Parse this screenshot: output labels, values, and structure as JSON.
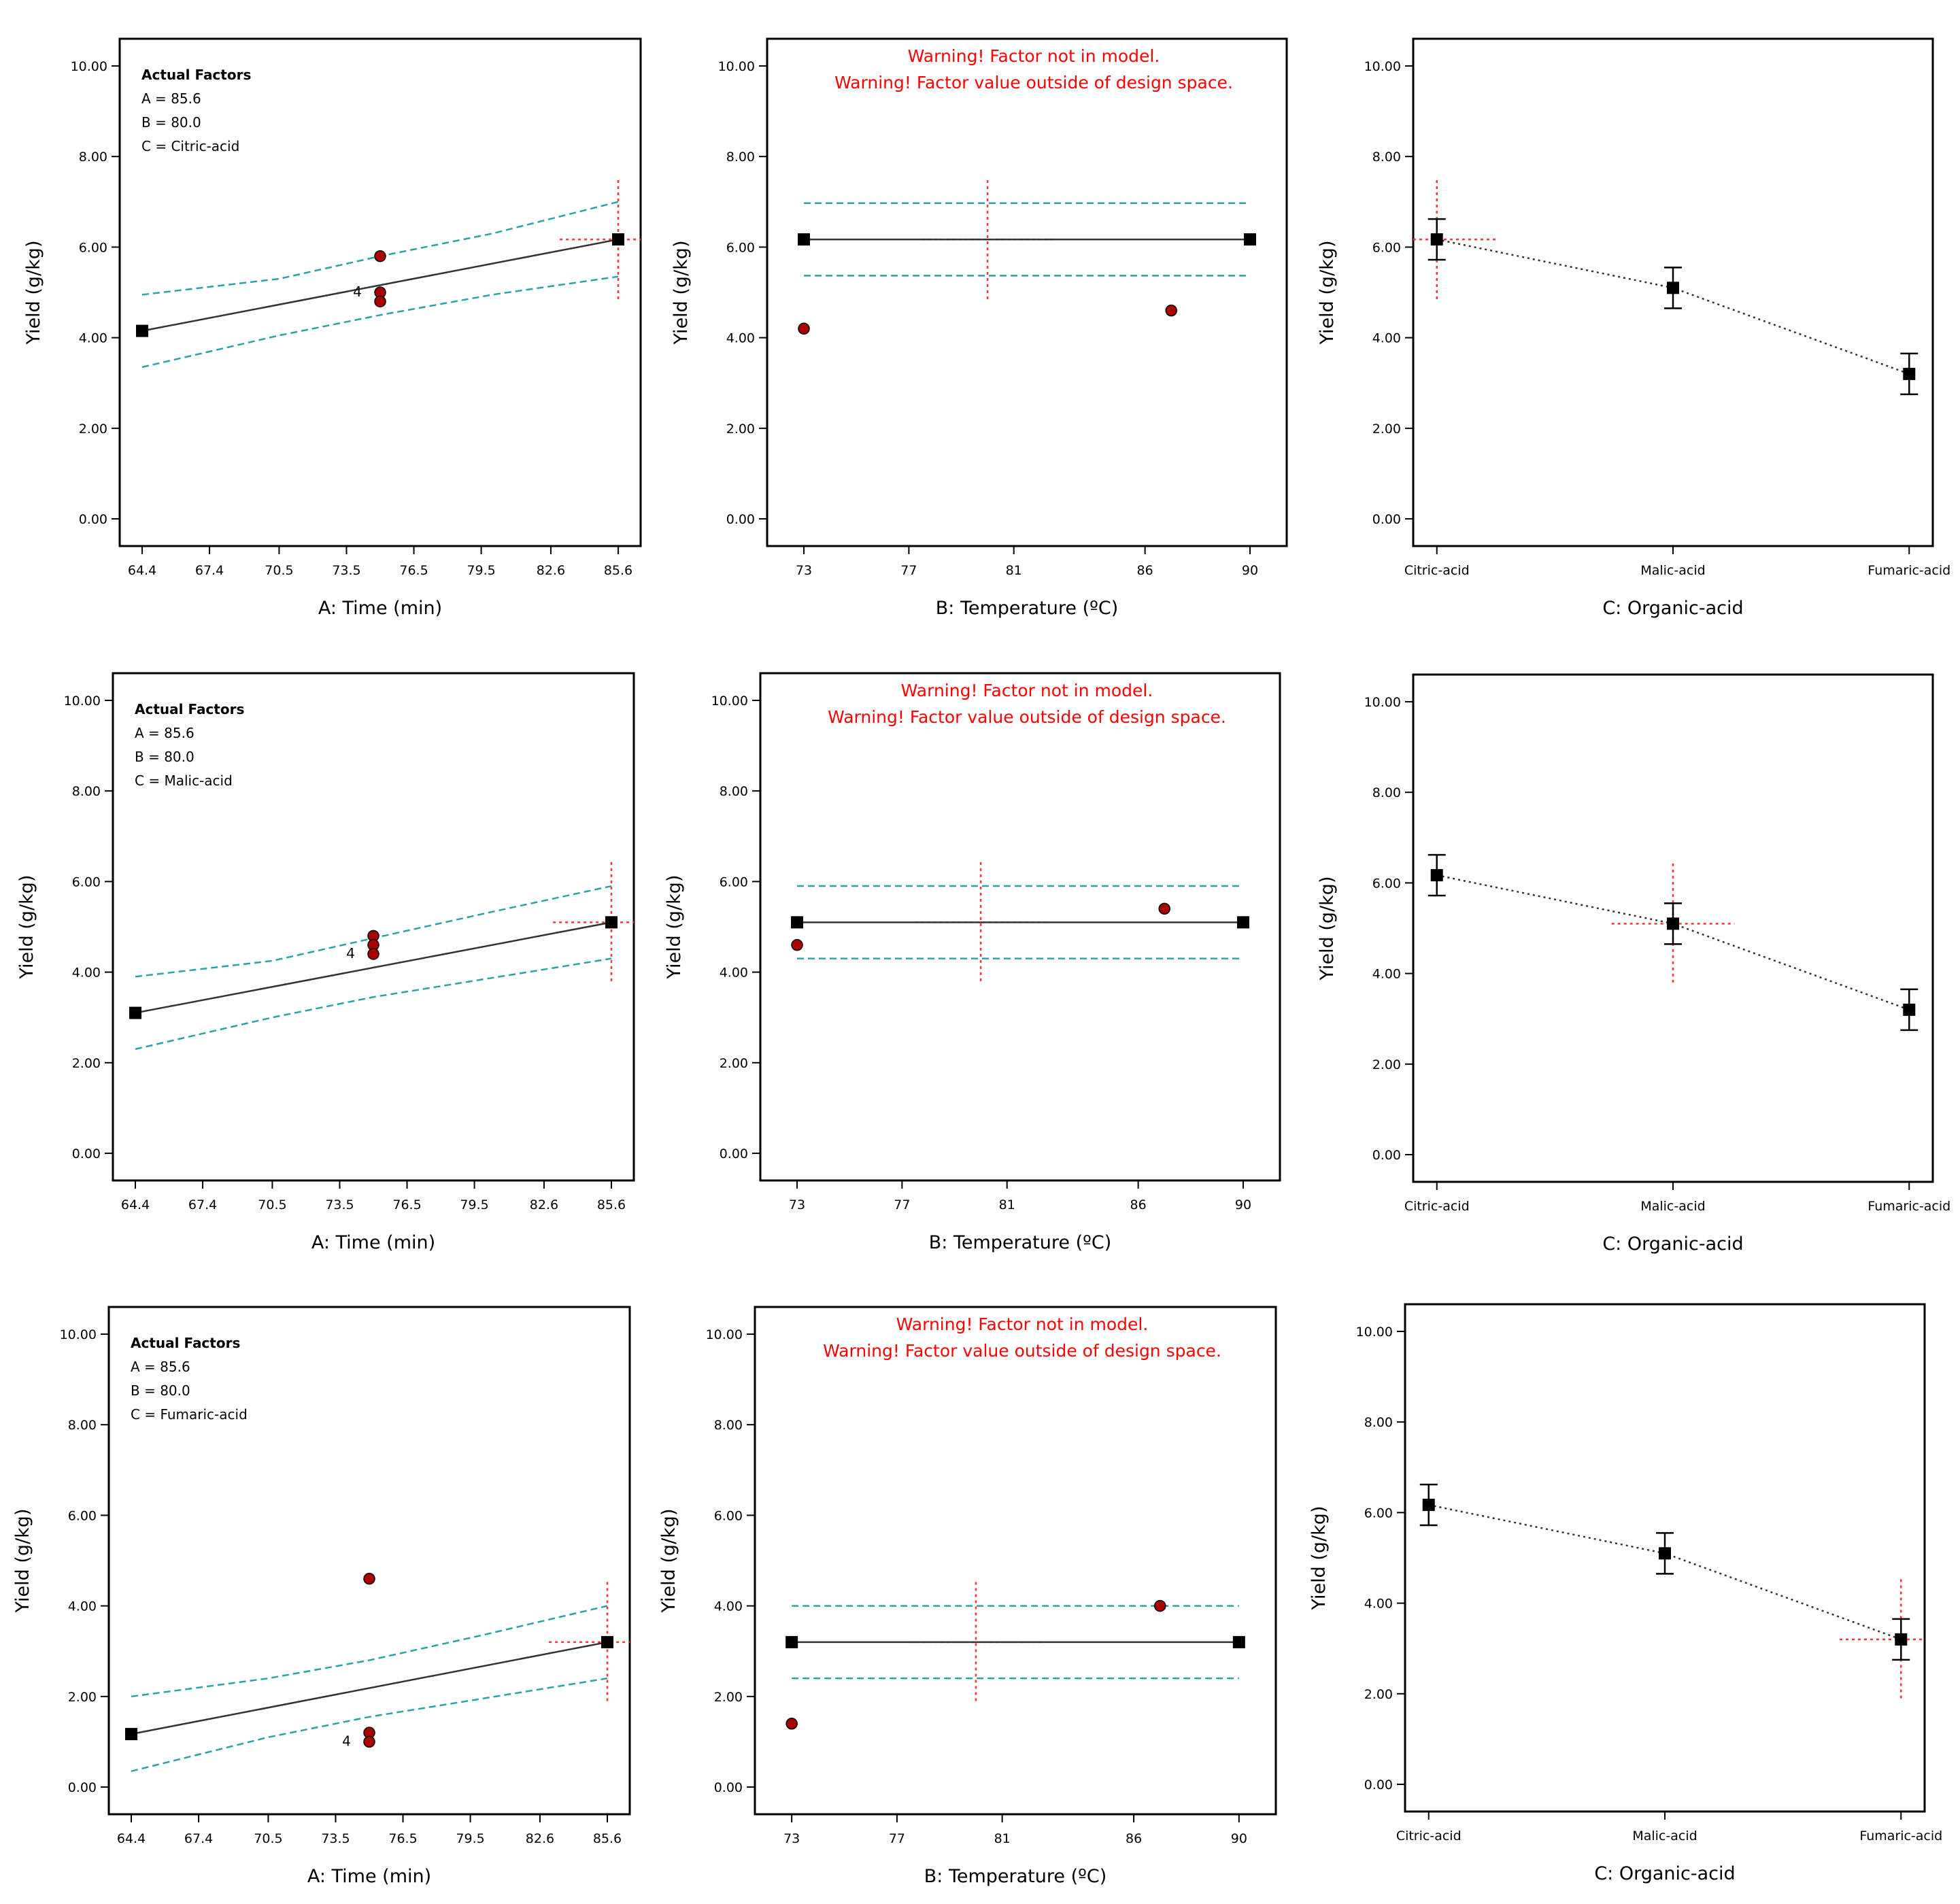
{
  "colors": {
    "fit_line": "#333333",
    "ci_band": "#2aa3a6",
    "marker": "#000000",
    "point_fill": "#aa0000",
    "crosshair": "#ff3333",
    "warning": "#ff0000"
  },
  "chart_data": [
    {
      "type": "line",
      "row": 1,
      "factor": "time",
      "xlabel": "A: Time (min)",
      "ylabel": "Yield (g/kg)",
      "xlim": [
        63.4,
        86.6
      ],
      "ylim": [
        -0.6,
        10.6
      ],
      "x_ticks": [
        64.4,
        67.4,
        70.5,
        73.5,
        76.5,
        79.5,
        82.6,
        85.6
      ],
      "y_ticks": [
        "0.00",
        "2.00",
        "4.00",
        "6.00",
        "8.00",
        "10.00"
      ],
      "fit": {
        "x": [
          64.4,
          85.6
        ],
        "y": [
          4.15,
          6.17
        ]
      },
      "ci_upper": {
        "x": [
          64.4,
          70.5,
          75.0,
          80.0,
          85.6
        ],
        "y": [
          4.95,
          5.3,
          5.8,
          6.3,
          7.0
        ]
      },
      "ci_lower": {
        "x": [
          64.4,
          70.5,
          75.0,
          80.0,
          85.6
        ],
        "y": [
          3.35,
          4.05,
          4.5,
          4.95,
          5.35
        ]
      },
      "design_points": {
        "x": [
          75.0,
          75.0,
          75.0
        ],
        "y": [
          5.8,
          5.0,
          4.8
        ]
      },
      "replicate_label": {
        "text": "4",
        "x": 74.3,
        "y": 5.0
      },
      "crosshair": {
        "x": 85.6,
        "y": 6.17,
        "y_low": 4.85,
        "y_high": 7.55,
        "x_low": 83.0,
        "x_high": 86.6
      },
      "legend": {
        "title": "Actual Factors",
        "lines": [
          "A = 85.6",
          "B = 80.0",
          "C = Citric-acid"
        ]
      }
    },
    {
      "type": "line",
      "row": 1,
      "factor": "temperature",
      "xlabel": "B: Temperature (ºC)",
      "ylabel": "Yield (g/kg)",
      "xlim": [
        71.6,
        91.4
      ],
      "ylim": [
        -0.6,
        10.6
      ],
      "x_ticks": [
        73,
        77,
        81,
        86,
        90
      ],
      "y_ticks": [
        "0.00",
        "2.00",
        "4.00",
        "6.00",
        "8.00",
        "10.00"
      ],
      "fit": {
        "x": [
          73,
          90
        ],
        "y": [
          6.17,
          6.17
        ]
      },
      "ci_upper": {
        "x": [
          73,
          90
        ],
        "y": [
          6.97,
          6.97
        ]
      },
      "ci_lower": {
        "x": [
          73,
          90
        ],
        "y": [
          5.37,
          5.37
        ]
      },
      "design_points": {
        "x": [
          73,
          87
        ],
        "y": [
          4.2,
          4.6
        ]
      },
      "crosshair": {
        "x": 80,
        "y": 6.17,
        "y_low": 4.85,
        "y_high": 7.55,
        "x_low": 77.5,
        "x_high": 82.5
      },
      "warnings": [
        "Warning! Factor not in model.",
        "Warning! Factor value outside of design space."
      ]
    },
    {
      "type": "line",
      "row": 1,
      "factor": "acid",
      "xlabel": "C: Organic-acid",
      "ylabel": "Yield (g/kg)",
      "xlim": [
        -0.1,
        2.1
      ],
      "ylim": [
        -0.6,
        10.6
      ],
      "categories": [
        "Citric-acid",
        "Malic-acid",
        "Fumaric-acid"
      ],
      "y_ticks": [
        "0.00",
        "2.00",
        "4.00",
        "6.00",
        "8.00",
        "10.00"
      ],
      "means": [
        6.17,
        5.1,
        3.2
      ],
      "err_low": [
        5.72,
        4.65,
        2.75
      ],
      "err_high": [
        6.62,
        5.55,
        3.65
      ],
      "crosshair": {
        "x": 0,
        "y": 6.17,
        "y_low": 4.85,
        "y_high": 7.55,
        "x_low": -0.1,
        "x_high": 0.26
      }
    },
    {
      "type": "line",
      "row": 2,
      "factor": "time",
      "xlabel": "A: Time (min)",
      "ylabel": "Yield (g/kg)",
      "xlim": [
        63.4,
        86.6
      ],
      "ylim": [
        -0.6,
        10.6
      ],
      "x_ticks": [
        64.4,
        67.4,
        70.5,
        73.5,
        76.5,
        79.5,
        82.6,
        85.6
      ],
      "y_ticks": [
        "0.00",
        "2.00",
        "4.00",
        "6.00",
        "8.00",
        "10.00"
      ],
      "fit": {
        "x": [
          64.4,
          85.6
        ],
        "y": [
          3.1,
          5.1
        ]
      },
      "ci_upper": {
        "x": [
          64.4,
          70.5,
          75.0,
          80.0,
          85.6
        ],
        "y": [
          3.9,
          4.25,
          4.75,
          5.3,
          5.9
        ]
      },
      "ci_lower": {
        "x": [
          64.4,
          70.5,
          75.0,
          80.0,
          85.6
        ],
        "y": [
          2.3,
          3.0,
          3.45,
          3.85,
          4.3
        ]
      },
      "design_points": {
        "x": [
          75.0,
          75.0,
          75.0
        ],
        "y": [
          4.8,
          4.6,
          4.4
        ]
      },
      "replicate_label": {
        "text": "4",
        "x": 74.3,
        "y": 4.4
      },
      "crosshair": {
        "x": 85.6,
        "y": 5.1,
        "y_low": 3.8,
        "y_high": 6.5,
        "x_low": 83.0,
        "x_high": 86.6
      },
      "legend": {
        "title": "Actual Factors",
        "lines": [
          "A = 85.6",
          "B = 80.0",
          "C = Malic-acid"
        ]
      }
    },
    {
      "type": "line",
      "row": 2,
      "factor": "temperature",
      "xlabel": "B: Temperature (ºC)",
      "ylabel": "Yield (g/kg)",
      "xlim": [
        71.6,
        91.4
      ],
      "ylim": [
        -0.6,
        10.6
      ],
      "x_ticks": [
        73,
        77,
        81,
        86,
        90
      ],
      "y_ticks": [
        "0.00",
        "2.00",
        "4.00",
        "6.00",
        "8.00",
        "10.00"
      ],
      "fit": {
        "x": [
          73,
          90
        ],
        "y": [
          5.1,
          5.1
        ]
      },
      "ci_upper": {
        "x": [
          73,
          90
        ],
        "y": [
          5.9,
          5.9
        ]
      },
      "ci_lower": {
        "x": [
          73,
          90
        ],
        "y": [
          4.3,
          4.3
        ]
      },
      "design_points": {
        "x": [
          73,
          87
        ],
        "y": [
          4.6,
          5.4
        ]
      },
      "crosshair": {
        "x": 80,
        "y": 5.1,
        "y_low": 3.8,
        "y_high": 6.5,
        "x_low": 77.5,
        "x_high": 82.5
      },
      "warnings": [
        "Warning! Factor not in model.",
        "Warning! Factor value outside of design space."
      ]
    },
    {
      "type": "line",
      "row": 2,
      "factor": "acid",
      "xlabel": "C: Organic-acid",
      "ylabel": "Yield (g/kg)",
      "xlim": [
        -0.1,
        2.1
      ],
      "ylim": [
        -0.6,
        10.6
      ],
      "categories": [
        "Citric-acid",
        "Malic-acid",
        "Fumaric-acid"
      ],
      "y_ticks": [
        "0.00",
        "2.00",
        "4.00",
        "6.00",
        "8.00",
        "10.00"
      ],
      "means": [
        6.17,
        5.1,
        3.2
      ],
      "err_low": [
        5.72,
        4.65,
        2.75
      ],
      "err_high": [
        6.62,
        5.55,
        3.65
      ],
      "crosshair": {
        "x": 1,
        "y": 5.1,
        "y_low": 3.8,
        "y_high": 6.5,
        "x_low": 0.74,
        "x_high": 1.26
      }
    },
    {
      "type": "line",
      "row": 3,
      "factor": "time",
      "xlabel": "A: Time (min)",
      "ylabel": "Yield (g/kg)",
      "xlim": [
        63.4,
        86.6
      ],
      "ylim": [
        -0.6,
        10.6
      ],
      "x_ticks": [
        64.4,
        67.4,
        70.5,
        73.5,
        76.5,
        79.5,
        82.6,
        85.6
      ],
      "y_ticks": [
        "0.00",
        "2.00",
        "4.00",
        "6.00",
        "8.00",
        "10.00"
      ],
      "fit": {
        "x": [
          64.4,
          85.6
        ],
        "y": [
          1.17,
          3.2
        ]
      },
      "ci_upper": {
        "x": [
          64.4,
          70.5,
          75.0,
          80.0,
          85.6
        ],
        "y": [
          2.0,
          2.4,
          2.8,
          3.35,
          4.0
        ]
      },
      "ci_lower": {
        "x": [
          64.4,
          70.5,
          75.0,
          80.0,
          85.6
        ],
        "y": [
          0.35,
          1.1,
          1.55,
          1.95,
          2.4
        ]
      },
      "design_points": {
        "x": [
          75.0,
          75.0,
          75.0
        ],
        "y": [
          4.6,
          1.2,
          1.0
        ]
      },
      "replicate_label": {
        "text": "4",
        "x": 74.3,
        "y": 1.0
      },
      "crosshair": {
        "x": 85.6,
        "y": 3.2,
        "y_low": 1.9,
        "y_high": 4.6,
        "x_low": 83.0,
        "x_high": 86.6
      },
      "legend": {
        "title": "Actual Factors",
        "lines": [
          "A = 85.6",
          "B = 80.0",
          "C = Fumaric-acid"
        ]
      }
    },
    {
      "type": "line",
      "row": 3,
      "factor": "temperature",
      "xlabel": "B: Temperature (ºC)",
      "ylabel": "Yield (g/kg)",
      "xlim": [
        71.6,
        91.4
      ],
      "ylim": [
        -0.6,
        10.6
      ],
      "x_ticks": [
        73,
        77,
        81,
        86,
        90
      ],
      "y_ticks": [
        "0.00",
        "2.00",
        "4.00",
        "6.00",
        "8.00",
        "10.00"
      ],
      "fit": {
        "x": [
          73,
          90
        ],
        "y": [
          3.2,
          3.2
        ]
      },
      "ci_upper": {
        "x": [
          73,
          90
        ],
        "y": [
          4.0,
          4.0
        ]
      },
      "ci_lower": {
        "x": [
          73,
          90
        ],
        "y": [
          2.4,
          2.4
        ]
      },
      "design_points": {
        "x": [
          73,
          87
        ],
        "y": [
          1.4,
          4.0
        ]
      },
      "crosshair": {
        "x": 80,
        "y": 3.2,
        "y_low": 1.9,
        "y_high": 4.6,
        "x_low": 77.5,
        "x_high": 82.5
      },
      "warnings": [
        "Warning! Factor not in model.",
        "Warning! Factor value outside of design space."
      ]
    },
    {
      "type": "line",
      "row": 3,
      "factor": "acid",
      "xlabel": "C: Organic-acid",
      "ylabel": "Yield (g/kg)",
      "xlim": [
        -0.1,
        2.1
      ],
      "ylim": [
        -0.6,
        10.6
      ],
      "categories": [
        "Citric-acid",
        "Malic-acid",
        "Fumaric-acid"
      ],
      "y_ticks": [
        "0.00",
        "2.00",
        "4.00",
        "6.00",
        "8.00",
        "10.00"
      ],
      "means": [
        6.17,
        5.1,
        3.2
      ],
      "err_low": [
        5.72,
        4.65,
        2.75
      ],
      "err_high": [
        6.62,
        5.55,
        3.65
      ],
      "crosshair": {
        "x": 2,
        "y": 3.2,
        "y_low": 1.9,
        "y_high": 4.6,
        "x_low": 1.74,
        "x_high": 2.1
      }
    }
  ]
}
